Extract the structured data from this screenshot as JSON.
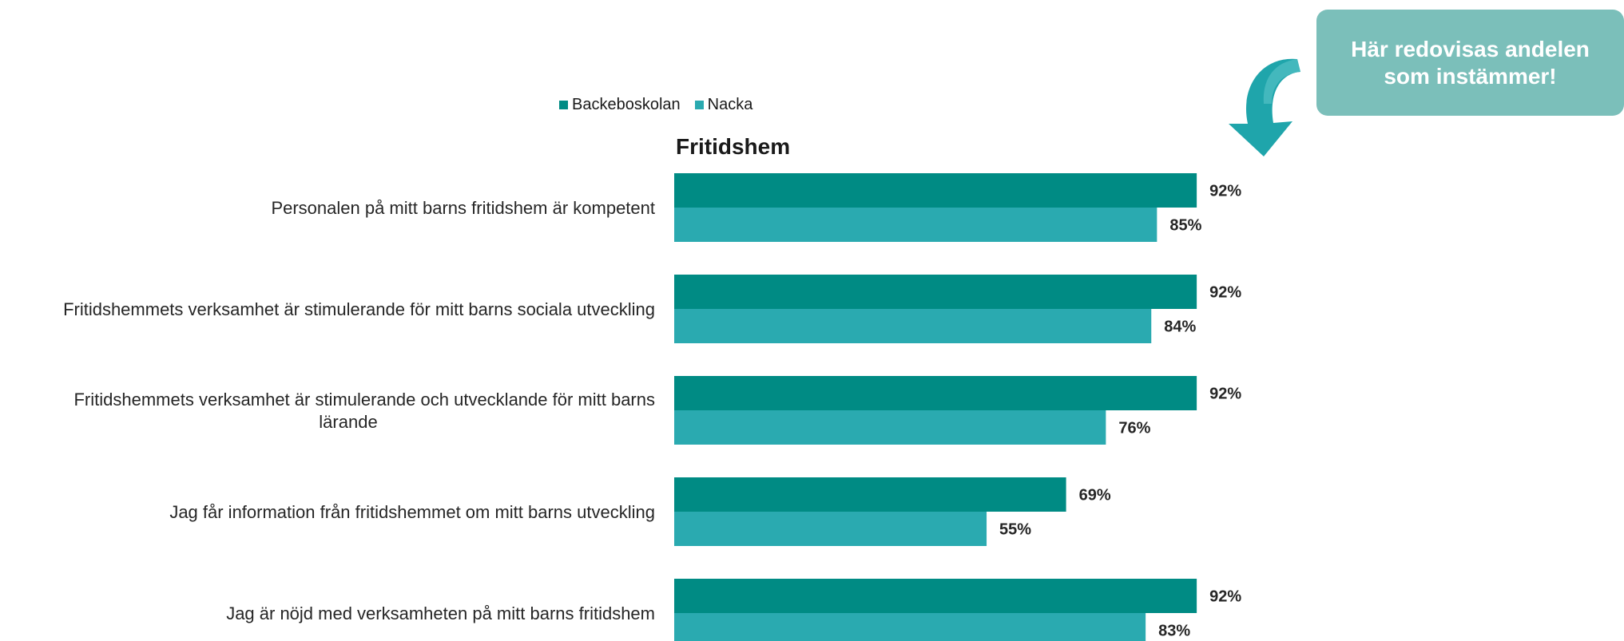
{
  "legend": {
    "items": [
      {
        "label": "Backeboskolan",
        "color": "#008b84"
      },
      {
        "label": "Nacka",
        "color": "#2aaab0"
      }
    ]
  },
  "callout": {
    "text": "Här redovisas andelen som instämmer!",
    "color": "#7bbfba"
  },
  "chart_data": {
    "type": "bar",
    "orientation": "horizontal",
    "title": "Fritidshem",
    "categories": [
      [
        "Personalen på mitt barns fritidshem är kompetent"
      ],
      [
        "Fritidshemmets verksamhet är stimulerande för mitt barns sociala utveckling"
      ],
      [
        "Fritidshemmets verksamhet är stimulerande och utvecklande för mitt barns",
        "lärande"
      ],
      [
        "Jag får information från fritidshemmet om mitt barns utveckling"
      ],
      [
        "Jag är nöjd med verksamheten på mitt barns fritidshem"
      ]
    ],
    "series": [
      {
        "name": "Backeboskolan",
        "color": "#008b84",
        "values": [
          92,
          92,
          92,
          69,
          92
        ],
        "labels": [
          "92%",
          "92%",
          "92%",
          "69%",
          "92%"
        ]
      },
      {
        "name": "Nacka",
        "color": "#2aaab0",
        "values": [
          85,
          84,
          76,
          55,
          83
        ],
        "labels": [
          "85%",
          "84%",
          "76%",
          "55%",
          "83%"
        ]
      }
    ],
    "xlim": [
      0,
      100
    ],
    "grid": false,
    "legend_position": "top"
  }
}
